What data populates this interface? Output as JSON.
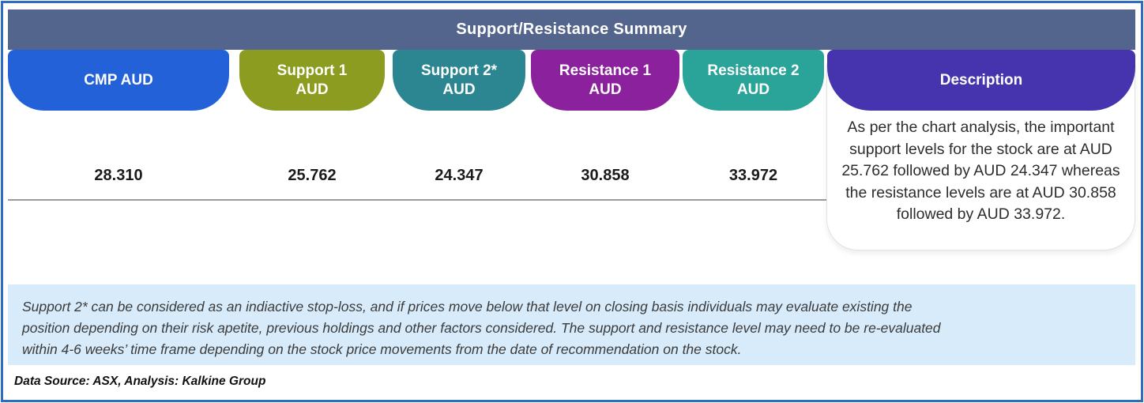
{
  "title_bar": {
    "title": "Support/Resistance Summary",
    "bg_color": "#53658c",
    "text_color": "#ffffff"
  },
  "frame_border_color": "#2e6cc0",
  "columns": [
    {
      "id": "cmp",
      "label": "CMP AUD",
      "color": "#2361d8",
      "value": "28.310"
    },
    {
      "id": "support1",
      "label": "Support 1\nAUD",
      "color": "#8b9c21",
      "value": "25.762"
    },
    {
      "id": "support2",
      "label": "Support 2*\nAUD",
      "color": "#2b8691",
      "value": "24.347"
    },
    {
      "id": "resistance1",
      "label": "Resistance 1\nAUD",
      "color": "#8b219c",
      "value": "30.858"
    },
    {
      "id": "resistance2",
      "label": "Resistance 2\nAUD",
      "color": "#2aa398",
      "value": "33.972"
    }
  ],
  "description": {
    "label": "Description",
    "color": "#4634ae",
    "text": "As per the chart analysis, the important support levels for the stock are at AUD 25.762 followed by AUD 24.347 whereas the resistance levels are at AUD 30.858 followed by AUD 33.972."
  },
  "note": {
    "bg_color": "#d7ebfa",
    "text": "Support 2* can be considered as an indiactive stop-loss, and if prices move below that level on closing basis individuals may evaluate existing the\nposition depending on their risk apetite, previous holdings and other factors considered. The support and resistance level may need to be re-evaluated\nwithin 4-6 weeks’ time frame depending on the stock price movements from  the date of recommendation on the stock."
  },
  "footer": {
    "source": "Data Source: ASX, Analysis: Kalkine Group"
  },
  "chart_data": {
    "type": "table",
    "title": "Support/Resistance Summary",
    "columns": [
      "CMP AUD",
      "Support 1 AUD",
      "Support 2* AUD",
      "Resistance 1 AUD",
      "Resistance 2 AUD",
      "Description"
    ],
    "rows": [
      [
        "28.310",
        "25.762",
        "24.347",
        "30.858",
        "33.972",
        "As per the chart analysis, the important support levels for the stock are at AUD 25.762 followed by AUD 24.347 whereas the resistance levels are at AUD 30.858 followed by AUD 33.972."
      ]
    ]
  }
}
